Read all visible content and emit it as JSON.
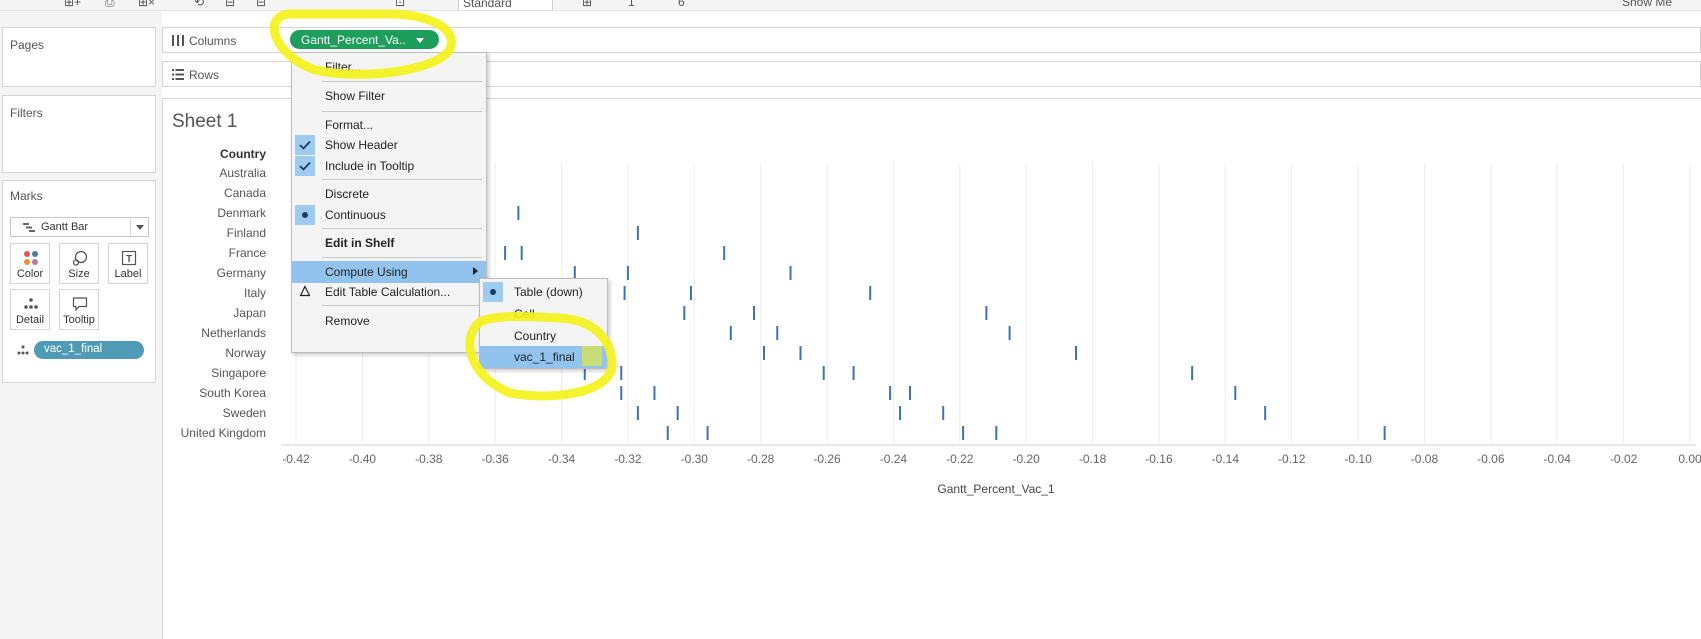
{
  "toolbar": {
    "items": [
      "⊞+",
      "⎙",
      "⊞×",
      "⟲",
      "⊟",
      "⊟",
      "⊡",
      "Standard",
      "⊞",
      "1",
      "6"
    ],
    "show_me": "Show Me"
  },
  "panels": {
    "pages": "Pages",
    "filters": "Filters",
    "marks": "Marks"
  },
  "marks_card": {
    "mark_type": "Gantt Bar",
    "buttons": [
      {
        "label": "Color",
        "icon": "color-dots-icon"
      },
      {
        "label": "Size",
        "icon": "size-icon"
      },
      {
        "label": "Label",
        "icon": "label-icon"
      },
      {
        "label": "Detail",
        "icon": "detail-icon"
      },
      {
        "label": "Tooltip",
        "icon": "tooltip-icon"
      }
    ],
    "pill": "vac_1_final"
  },
  "shelves": {
    "columns_label": "Columns",
    "rows_label": "Rows",
    "columns_pill": "Gantt_Percent_Va.."
  },
  "sheet": {
    "title": "Sheet 1"
  },
  "context_menu": {
    "items": [
      {
        "label": "Filter...",
        "checked": false
      },
      {
        "label": "Show Filter",
        "checked": false
      },
      {
        "label": "Format...",
        "checked": false
      },
      {
        "label": "Show Header",
        "checked": true
      },
      {
        "label": "Include in Tooltip",
        "checked": true
      },
      {
        "label": "Discrete",
        "checked": false
      },
      {
        "label": "Continuous",
        "checked": true
      },
      {
        "label": "Edit in Shelf",
        "bold": true
      },
      {
        "label": "Compute Using",
        "highlighted": true,
        "submenu": true
      },
      {
        "label": "Edit Table Calculation...",
        "icon": "delta-icon"
      },
      {
        "label": "Remove"
      }
    ]
  },
  "submenu": {
    "items": [
      {
        "label": "Table (down)",
        "selected": true
      },
      {
        "label": "Cell"
      },
      {
        "label": "Country"
      },
      {
        "label": "vac_1_final",
        "highlighted": true
      }
    ]
  },
  "chart_data": {
    "type": "gantt",
    "row_header": "Country",
    "xlabel": "Gantt_Percent_Vac_1",
    "xlim": [
      -0.42,
      0.0
    ],
    "x_ticks": [
      "-0.42",
      "-0.40",
      "-0.38",
      "-0.36",
      "-0.34",
      "-0.32",
      "-0.30",
      "-0.28",
      "-0.26",
      "-0.24",
      "-0.22",
      "-0.20",
      "-0.18",
      "-0.16",
      "-0.14",
      "-0.12",
      "-0.10",
      "-0.08",
      "-0.06",
      "-0.04",
      "-0.02",
      "0.00"
    ],
    "grid": "vertical",
    "mark_color": "#3e72b0",
    "rows": [
      {
        "country": "Australia",
        "values": []
      },
      {
        "country": "Canada",
        "values": []
      },
      {
        "country": "Denmark",
        "values": [
          -0.353
        ]
      },
      {
        "country": "Finland",
        "values": [
          -0.317
        ]
      },
      {
        "country": "France",
        "values": [
          -0.357,
          -0.352,
          -0.291
        ]
      },
      {
        "country": "Germany",
        "values": [
          -0.336,
          -0.32,
          -0.271
        ]
      },
      {
        "country": "Italy",
        "values": [
          -0.321,
          -0.301,
          -0.247
        ]
      },
      {
        "country": "Japan",
        "values": [
          -0.303,
          -0.282,
          -0.212
        ]
      },
      {
        "country": "Netherlands",
        "values": [
          -0.289,
          -0.275,
          -0.205
        ]
      },
      {
        "country": "Norway",
        "values": [
          -0.279,
          -0.268,
          -0.185
        ]
      },
      {
        "country": "Singapore",
        "values": [
          -0.333,
          -0.322,
          -0.261,
          -0.252,
          -0.15
        ]
      },
      {
        "country": "South Korea",
        "values": [
          -0.322,
          -0.312,
          -0.241,
          -0.235,
          -0.137
        ]
      },
      {
        "country": "Sweden",
        "values": [
          -0.317,
          -0.305,
          -0.238,
          -0.225,
          -0.128
        ]
      },
      {
        "country": "United Kingdom",
        "values": [
          -0.308,
          -0.296,
          -0.219,
          -0.209,
          -0.092
        ]
      }
    ]
  }
}
